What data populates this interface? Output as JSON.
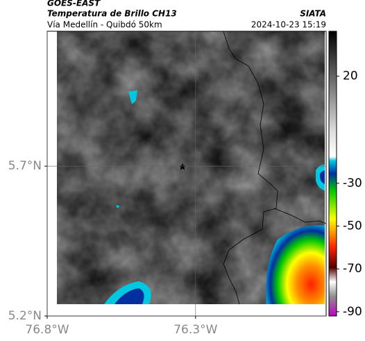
{
  "header": {
    "satellite": "GOES-EAST",
    "product": "Temperatura de Brillo CH13",
    "route": "Vía Medellín - Quibdó 50km",
    "source": "SIATA",
    "timestamp": "2024-10-23 15:19"
  },
  "map": {
    "lonlim": [
      -76.8,
      -75.86
    ],
    "latlim": [
      5.2,
      6.15
    ],
    "lat_ticks": [
      {
        "value": 5.2,
        "label": "5.2°N"
      },
      {
        "value": 5.7,
        "label": "5.7°N"
      }
    ],
    "lon_ticks": [
      {
        "value": -76.8,
        "label": "76.8°W"
      },
      {
        "value": -76.3,
        "label": "76.3°W"
      }
    ],
    "grid": true
  },
  "colorbar": {
    "lim": [
      -92,
      41
    ],
    "ticks": [
      20,
      -30,
      -50,
      -70,
      -90
    ]
  }
}
